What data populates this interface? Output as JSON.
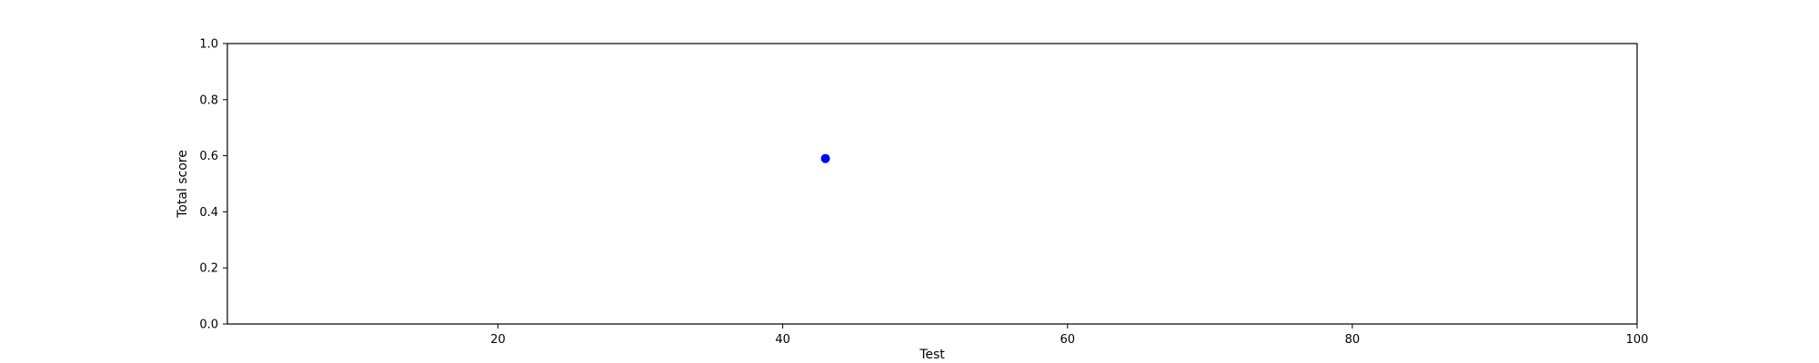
{
  "chart_data": {
    "type": "scatter",
    "title": "",
    "xlabel": "Test",
    "ylabel": "Total score",
    "xlim": [
      1,
      100
    ],
    "ylim": [
      0.0,
      1.0
    ],
    "xticks": [
      20,
      40,
      60,
      80,
      100
    ],
    "xtick_labels": [
      "20",
      "40",
      "60",
      "80",
      "100"
    ],
    "yticks": [
      0.0,
      0.2,
      0.4,
      0.6,
      0.8,
      1.0
    ],
    "ytick_labels": [
      "0.0",
      "0.2",
      "0.4",
      "0.6",
      "0.8",
      "1.0"
    ],
    "grid": false,
    "legend": "none",
    "series": [
      {
        "color": "#0000ff",
        "points": [
          {
            "x": 43,
            "y": 0.59
          }
        ]
      }
    ]
  }
}
